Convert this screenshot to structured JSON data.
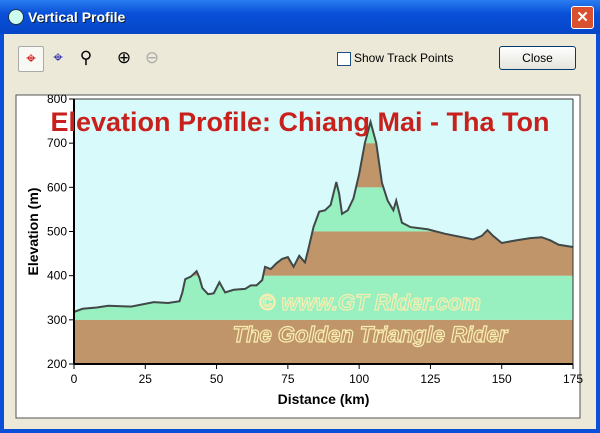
{
  "window": {
    "title": "Vertical Profile",
    "close_glyph": "✕"
  },
  "toolbar": {
    "tools": [
      {
        "icon": "crosshair-red-icon"
      },
      {
        "icon": "crosshair-blue-icon"
      },
      {
        "icon": "zoom-area-icon"
      },
      {
        "icon": "zoom-in-icon"
      },
      {
        "icon": "zoom-out-icon"
      }
    ],
    "show_track_points_label": "Show Track Points",
    "show_track_points_checked": false,
    "close_label": "Close"
  },
  "colors": {
    "background": "#d8fafa",
    "band_brown": "#c0956a",
    "band_green": "#98f0c0",
    "line": "#404848",
    "title": "#c8201c"
  },
  "chart_data": {
    "type": "area",
    "title": "Elevation Profile: Chiang Mai - Tha Ton",
    "xlabel": "Distance   (km)",
    "ylabel": "Elevation (m)",
    "xlim": [
      0,
      175
    ],
    "ylim": [
      200,
      800
    ],
    "xticks": [
      "0",
      "25",
      "50",
      "75",
      "100",
      "125",
      "150",
      "175"
    ],
    "yticks": [
      "200",
      "300",
      "400",
      "500",
      "600",
      "700",
      "800"
    ],
    "bands": [
      [
        200,
        300,
        "brown"
      ],
      [
        300,
        400,
        "green"
      ],
      [
        400,
        500,
        "brown"
      ],
      [
        500,
        600,
        "green"
      ],
      [
        600,
        700,
        "brown"
      ],
      [
        700,
        800,
        "green"
      ]
    ],
    "x": [
      0,
      3,
      8,
      12,
      20,
      28,
      33,
      37,
      38,
      39,
      41,
      43,
      44,
      45,
      47,
      49,
      51,
      53,
      56,
      60,
      62,
      64,
      66,
      67,
      69,
      71,
      73,
      75,
      77,
      79,
      81,
      82,
      84,
      86,
      88,
      90,
      92,
      93,
      94,
      96,
      98,
      100,
      102,
      104,
      106,
      108,
      110,
      112,
      113,
      115,
      118,
      124,
      130,
      140,
      143,
      145,
      147,
      150,
      155,
      160,
      164,
      167,
      170,
      175
    ],
    "y": [
      318,
      325,
      328,
      332,
      330,
      340,
      338,
      342,
      362,
      392,
      398,
      410,
      395,
      372,
      358,
      360,
      385,
      362,
      368,
      370,
      378,
      378,
      390,
      420,
      415,
      428,
      438,
      442,
      420,
      445,
      430,
      455,
      510,
      545,
      548,
      560,
      612,
      585,
      540,
      548,
      575,
      630,
      700,
      748,
      700,
      610,
      570,
      548,
      570,
      520,
      510,
      505,
      495,
      482,
      490,
      503,
      490,
      474,
      480,
      485,
      487,
      480,
      470,
      465
    ]
  },
  "watermark": {
    "line1": "©  www.GT Rider.com",
    "line2": "The Golden Triangle Rider"
  }
}
